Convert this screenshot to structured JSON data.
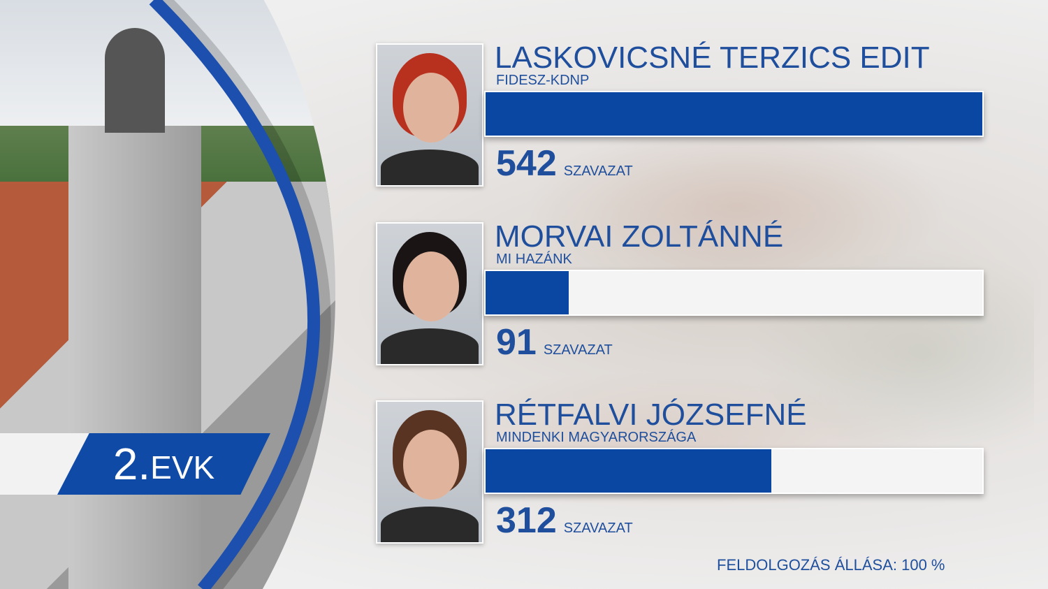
{
  "district": {
    "number": "2.",
    "label": "EVK"
  },
  "colors": {
    "bar": "#0a47a3",
    "text": "#1f4f9c",
    "track": "#f4f4f4"
  },
  "unit_label": "SZAVAZAT",
  "status": "FELDOLGOZÁS ÁLLÁSA: 100 %",
  "chart_data": {
    "type": "bar",
    "orientation": "horizontal",
    "categories": [
      "LASKOVICSNÉ TERZICS EDIT",
      "MORVAI ZOLTÁNNÉ",
      "RÉTFALVI JÓZSEFNÉ"
    ],
    "parties": [
      "FIDESZ-KDNP",
      "MI HAZÁNK",
      "MINDENKI MAGYARORSZÁGA"
    ],
    "values": [
      542,
      91,
      312
    ],
    "hair_colors": [
      "#b8301e",
      "#1a1414",
      "#5a3422"
    ]
  }
}
